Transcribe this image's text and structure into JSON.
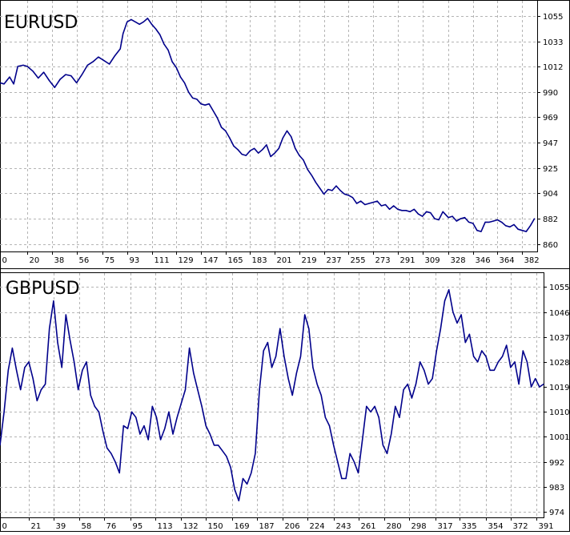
{
  "chart_data": [
    {
      "type": "line",
      "title": "EURUSD",
      "xlabel": "",
      "ylabel": "",
      "grid": true,
      "xlim": [
        0,
        393
      ],
      "ylim": [
        854,
        1068
      ],
      "x_ticks": [
        0,
        20,
        38,
        56,
        75,
        93,
        111,
        129,
        147,
        165,
        183,
        201,
        219,
        237,
        255,
        273,
        291,
        309,
        328,
        346,
        364,
        382
      ],
      "y_ticks": [
        1055,
        1033,
        1012,
        990,
        969,
        947,
        925,
        904,
        882,
        860
      ],
      "line_color": "#00008b",
      "series": [
        {
          "x": [
            0,
            3,
            7,
            10,
            13,
            17,
            20,
            24,
            28,
            32,
            36,
            40,
            44,
            48,
            52,
            56,
            60,
            64,
            68,
            72,
            76,
            80,
            84,
            88,
            90,
            93,
            96,
            99,
            102,
            105,
            108,
            111,
            114,
            117,
            120,
            123,
            126,
            129,
            132,
            135,
            138,
            141,
            144,
            147,
            150,
            153,
            156,
            159,
            162,
            165,
            168,
            171,
            174,
            177,
            180,
            183,
            186,
            189,
            192,
            195,
            198,
            201,
            204,
            207,
            210,
            213,
            216,
            219,
            222,
            225,
            228,
            231,
            234,
            237,
            240,
            243,
            246,
            249,
            252,
            255,
            258,
            261,
            264,
            267,
            270,
            273,
            276,
            279,
            282,
            285,
            288,
            291,
            294,
            297,
            300,
            303,
            306,
            309,
            312,
            315,
            318,
            321,
            324,
            328,
            331,
            334,
            337,
            340,
            343,
            346,
            349,
            352,
            355,
            358,
            361,
            364,
            367,
            370,
            373,
            376,
            379,
            382,
            385,
            388,
            391
          ],
          "y": [
            998,
            997,
            1003,
            997,
            1012,
            1013,
            1012,
            1008,
            1002,
            1007,
            1000,
            994,
            1001,
            1005,
            1004,
            998,
            1005,
            1013,
            1016,
            1020,
            1017,
            1014,
            1021,
            1027,
            1040,
            1050,
            1052,
            1050,
            1048,
            1050,
            1053,
            1048,
            1044,
            1039,
            1031,
            1026,
            1016,
            1011,
            1003,
            998,
            990,
            985,
            984,
            980,
            979,
            980,
            974,
            968,
            960,
            957,
            951,
            944,
            941,
            937,
            936,
            940,
            942,
            938,
            941,
            945,
            935,
            938,
            942,
            951,
            957,
            952,
            942,
            936,
            932,
            924,
            919,
            913,
            908,
            903,
            907,
            906,
            910,
            906,
            903,
            902,
            900,
            895,
            897,
            894,
            895,
            896,
            897,
            893,
            894,
            890,
            893,
            890,
            889,
            889,
            888,
            890,
            886,
            884,
            888,
            887,
            882,
            881,
            888,
            883,
            884,
            880,
            882,
            883,
            879,
            878,
            872,
            871,
            879,
            879,
            880,
            881,
            879,
            876,
            875,
            877,
            873,
            872,
            871,
            876,
            882
          ]
        }
      ]
    },
    {
      "type": "line",
      "title": "GBPUSD",
      "xlabel": "",
      "ylabel": "",
      "grid": true,
      "xlim": [
        0,
        396
      ],
      "ylim": [
        972,
        1060
      ],
      "x_ticks": [
        0,
        21,
        39,
        58,
        76,
        95,
        113,
        132,
        150,
        169,
        187,
        206,
        224,
        243,
        261,
        280,
        298,
        317,
        335,
        354,
        372,
        391
      ],
      "y_ticks": [
        1055,
        1046,
        1037,
        1028,
        1019,
        1010,
        1001,
        992,
        983,
        974
      ],
      "line_color": "#00008b",
      "series": [
        {
          "x": [
            0,
            3,
            6,
            9,
            12,
            15,
            18,
            21,
            24,
            27,
            30,
            33,
            36,
            39,
            42,
            45,
            48,
            51,
            54,
            57,
            60,
            63,
            66,
            69,
            72,
            75,
            78,
            81,
            84,
            87,
            90,
            93,
            96,
            99,
            102,
            105,
            108,
            111,
            114,
            117,
            120,
            123,
            126,
            129,
            132,
            135,
            138,
            141,
            144,
            147,
            150,
            153,
            156,
            159,
            162,
            165,
            168,
            171,
            174,
            177,
            180,
            183,
            186,
            189,
            192,
            195,
            198,
            201,
            204,
            207,
            210,
            213,
            216,
            219,
            222,
            225,
            228,
            231,
            234,
            237,
            240,
            243,
            246,
            249,
            252,
            255,
            258,
            261,
            264,
            267,
            270,
            273,
            276,
            279,
            282,
            285,
            288,
            291,
            294,
            297,
            300,
            303,
            306,
            309,
            312,
            315,
            318,
            321,
            324,
            327,
            330,
            333,
            336,
            339,
            342,
            345,
            348,
            351,
            354,
            357,
            360,
            363,
            366,
            369,
            372,
            375,
            378,
            381,
            384,
            387,
            390,
            393,
            396
          ],
          "y": [
            998,
            1010,
            1025,
            1033,
            1025,
            1018,
            1026,
            1028,
            1022,
            1014,
            1018,
            1020,
            1040,
            1050,
            1035,
            1026,
            1045,
            1036,
            1028,
            1018,
            1025,
            1028,
            1016,
            1012,
            1010,
            1003,
            997,
            995,
            992,
            988,
            1005,
            1004,
            1010,
            1008,
            1002,
            1005,
            1000,
            1012,
            1008,
            1000,
            1004,
            1010,
            1002,
            1008,
            1013,
            1018,
            1033,
            1024,
            1018,
            1012,
            1005,
            1002,
            998,
            998,
            996,
            994,
            990,
            982,
            978,
            986,
            984,
            988,
            995,
            1018,
            1032,
            1035,
            1026,
            1030,
            1040,
            1030,
            1022,
            1016,
            1024,
            1030,
            1045,
            1040,
            1026,
            1020,
            1016,
            1008,
            1005,
            998,
            992,
            986,
            986,
            995,
            992,
            988,
            1000,
            1012,
            1010,
            1012,
            1008,
            998,
            995,
            1002,
            1012,
            1008,
            1018,
            1020,
            1015,
            1020,
            1028,
            1025,
            1020,
            1022,
            1032,
            1040,
            1050,
            1054,
            1046,
            1042,
            1045,
            1035,
            1038,
            1030,
            1028,
            1032,
            1030,
            1025,
            1025,
            1028,
            1030,
            1034,
            1026,
            1028,
            1020,
            1032,
            1028,
            1019,
            1022,
            1019,
            1020
          ]
        }
      ]
    }
  ]
}
